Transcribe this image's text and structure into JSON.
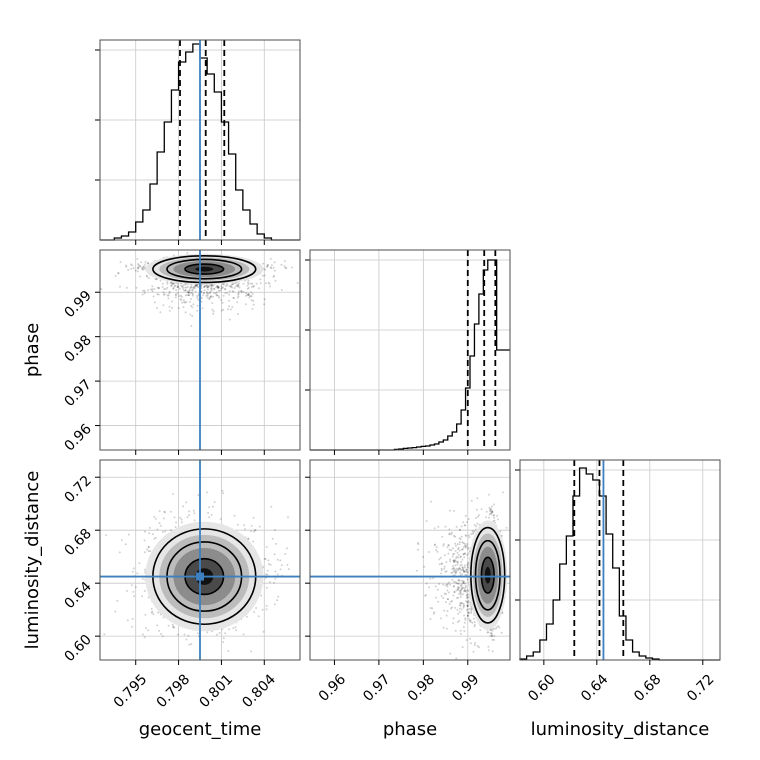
{
  "chart_data": {
    "type": "corner",
    "parameters": [
      "geocent_time",
      "phase",
      "luminosity_distance"
    ],
    "axis_labels": [
      "geocent_time",
      "phase",
      "luminosity_distance"
    ],
    "ranges": {
      "geocent_time": [
        0.7925,
        0.8065
      ],
      "phase": [
        0.9545,
        0.9995
      ],
      "luminosity_distance": [
        0.582,
        0.733
      ]
    },
    "ticks": {
      "geocent_time": [
        "0.795",
        "0.798",
        "0.801",
        "0.804"
      ],
      "phase": [
        "0.96",
        "0.97",
        "0.98",
        "0.99"
      ],
      "luminosity_distance": [
        "0.60",
        "0.64",
        "0.68",
        "0.72"
      ]
    },
    "truths": {
      "geocent_time": 0.7995,
      "phase": null,
      "luminosity_distance": 0.645
    },
    "quantiles": {
      "geocent_time": [
        0.7981,
        0.7999,
        0.8012
      ],
      "phase": [
        0.99,
        0.9937,
        0.9962
      ],
      "luminosity_distance": [
        0.623,
        0.642,
        0.66
      ]
    },
    "histograms": {
      "geocent_time": {
        "edges": [
          0.7925,
          0.793,
          0.7935,
          0.794,
          0.7945,
          0.795,
          0.7955,
          0.796,
          0.7965,
          0.797,
          0.7975,
          0.798,
          0.7985,
          0.799,
          0.7995,
          0.8,
          0.8005,
          0.801,
          0.8015,
          0.802,
          0.8025,
          0.803,
          0.8035,
          0.804,
          0.8045,
          0.805,
          0.8055,
          0.806,
          0.8065
        ],
        "counts": [
          0,
          0,
          0.01,
          0.02,
          0.04,
          0.09,
          0.15,
          0.28,
          0.44,
          0.59,
          0.75,
          0.89,
          0.94,
          0.98,
          0.91,
          0.83,
          0.74,
          0.59,
          0.43,
          0.25,
          0.15,
          0.08,
          0.03,
          0.01,
          0,
          0,
          0,
          0
        ]
      },
      "phase": {
        "edges": [
          0.9545,
          0.9555,
          0.9565,
          0.9575,
          0.9585,
          0.9595,
          0.9605,
          0.9615,
          0.9625,
          0.9635,
          0.9645,
          0.9655,
          0.9665,
          0.9675,
          0.9685,
          0.9695,
          0.9705,
          0.9715,
          0.9725,
          0.9735,
          0.9745,
          0.9755,
          0.9765,
          0.9775,
          0.9785,
          0.9795,
          0.9805,
          0.9815,
          0.9825,
          0.9835,
          0.9845,
          0.9855,
          0.9865,
          0.9875,
          0.9885,
          0.9895,
          0.9905,
          0.9915,
          0.9925,
          0.9935,
          0.9945,
          0.9955,
          0.9965,
          0.9975,
          0.9985,
          0.9995
        ],
        "counts": [
          0,
          0,
          0,
          0,
          0,
          0,
          0,
          0,
          0,
          0,
          0,
          0,
          0,
          0,
          0,
          0,
          0,
          0,
          0,
          0.003,
          0.005,
          0.008,
          0.01,
          0.012,
          0.015,
          0.018,
          0.02,
          0.025,
          0.03,
          0.04,
          0.05,
          0.07,
          0.09,
          0.13,
          0.2,
          0.31,
          0.47,
          0.63,
          0.78,
          0.9,
          0.95,
          0.95,
          0.5,
          0.5,
          0.5
        ]
      },
      "luminosity_distance": {
        "edges": [
          0.582,
          0.587,
          0.592,
          0.597,
          0.602,
          0.607,
          0.612,
          0.617,
          0.622,
          0.627,
          0.632,
          0.637,
          0.642,
          0.647,
          0.652,
          0.657,
          0.662,
          0.667,
          0.672,
          0.677,
          0.682,
          0.687,
          0.692,
          0.697,
          0.702,
          0.707,
          0.712,
          0.717,
          0.722,
          0.727,
          0.733
        ],
        "counts": [
          0.005,
          0.02,
          0.04,
          0.1,
          0.18,
          0.3,
          0.48,
          0.62,
          0.82,
          0.96,
          0.93,
          0.9,
          0.82,
          0.63,
          0.46,
          0.22,
          0.1,
          0.04,
          0.02,
          0.01,
          0.005,
          0,
          0,
          0,
          0,
          0,
          0,
          0,
          0,
          0
        ]
      }
    },
    "density_2d": [
      {
        "x": "geocent_time",
        "y": "phase",
        "center": [
          0.7998,
          0.9952
        ],
        "sigma": [
          0.0018,
          0.0015
        ],
        "levels": [
          0.35,
          0.75,
          1.0
        ]
      },
      {
        "x": "geocent_time",
        "y": "luminosity_distance",
        "center": [
          0.7998,
          0.645
        ],
        "sigma": [
          0.0018,
          0.018
        ],
        "levels": [
          0.35,
          0.75,
          1.0
        ]
      },
      {
        "x": "phase",
        "y": "luminosity_distance",
        "center": [
          0.9945,
          0.646
        ],
        "sigma": [
          0.0019,
          0.018
        ],
        "levels": [
          0.3,
          0.65,
          0.95
        ]
      }
    ],
    "grid": true,
    "legend": "none"
  }
}
